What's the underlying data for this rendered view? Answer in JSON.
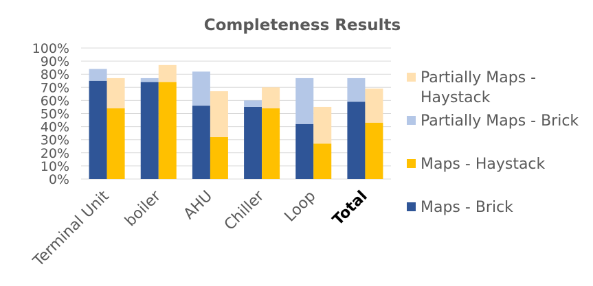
{
  "chart_data": {
    "type": "bar",
    "title": "Completeness Results",
    "categories": [
      "Terminal Unit",
      "boiler",
      "AHU",
      "Chiller",
      "Loop",
      "Total"
    ],
    "emphasized_categories": [
      "Total"
    ],
    "ylim": [
      0,
      100
    ],
    "y_ticks": [
      0,
      10,
      20,
      30,
      40,
      50,
      60,
      70,
      80,
      90,
      100
    ],
    "y_tick_labels": [
      "0%",
      "10%",
      "20%",
      "30%",
      "40%",
      "50%",
      "60%",
      "70%",
      "80%",
      "90%",
      "100%"
    ],
    "grid": true,
    "legend_position": "right",
    "groups": [
      {
        "name": "Brick",
        "stacks": [
          {
            "name": "Maps - Brick",
            "color": "#2F5597",
            "values": [
              75,
              74,
              56,
              55,
              42,
              59
            ]
          },
          {
            "name": "Partially Maps - Brick",
            "color": "#B4C7E7",
            "values": [
              9,
              3,
              26,
              5,
              35,
              18
            ]
          }
        ]
      },
      {
        "name": "Haystack",
        "stacks": [
          {
            "name": "Maps - Haystack",
            "color": "#FFC000",
            "values": [
              54,
              74,
              32,
              54,
              27,
              43
            ]
          },
          {
            "name": "Partially Maps - Haystack",
            "color": "#FFE0B0",
            "values": [
              23,
              13,
              35,
              16,
              28,
              26
            ]
          }
        ]
      }
    ],
    "legend": [
      {
        "lines": [
          "Partially Maps -",
          "Haystack"
        ],
        "color": "#FFE0B0"
      },
      {
        "lines": [
          "Partially Maps - Brick"
        ],
        "color": "#B4C7E7"
      },
      {
        "lines": [
          "Maps - Haystack"
        ],
        "color": "#FFC000"
      },
      {
        "lines": [
          "Maps - Brick"
        ],
        "color": "#2F5597"
      }
    ],
    "gridline_color": "#D9D9D9"
  }
}
